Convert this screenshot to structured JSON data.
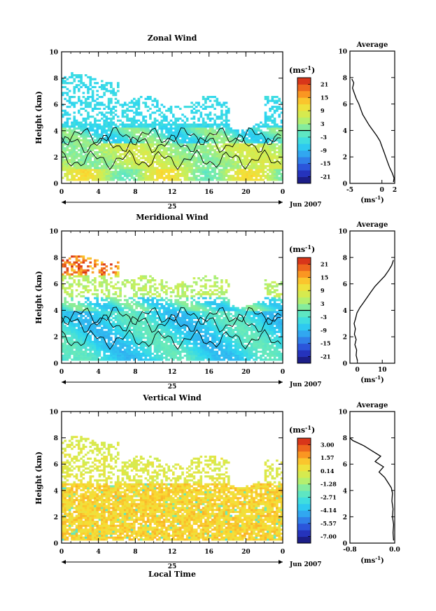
{
  "figure": {
    "xlabel_bottom": "Local Time",
    "date_label": "Jun 2007",
    "day_label": "25",
    "average_title": "Average"
  },
  "chart_data": [
    {
      "type": "heatmap",
      "title": "Zonal Wind",
      "ylabel": "Height (km)",
      "xlabel": "",
      "xticks": [
        "0",
        "4",
        "8",
        "12",
        "16",
        "20",
        "0"
      ],
      "xlim": [
        0,
        24
      ],
      "yticks": [
        "0",
        "2",
        "4",
        "6",
        "8",
        "10"
      ],
      "ylim": [
        0,
        10
      ],
      "colorbar": {
        "unit": "(ms-1)",
        "ticks": [
          "21",
          "15",
          "9",
          "3",
          "-3",
          "-9",
          "-15",
          "-21"
        ],
        "range": [
          -24,
          24
        ]
      },
      "zero_contour_level": 0,
      "profile": {
        "title": "Average",
        "xlabel": "(ms-1)",
        "xticks": [
          "-5",
          "0",
          "2"
        ],
        "xlim": [
          -5,
          2
        ],
        "ylim": [
          0,
          10
        ],
        "points": [
          [
            1.8,
            0.1
          ],
          [
            1.9,
            0.4
          ],
          [
            1.6,
            0.8
          ],
          [
            1.2,
            1.2
          ],
          [
            0.9,
            1.6
          ],
          [
            0.6,
            2.0
          ],
          [
            0.3,
            2.4
          ],
          [
            0.0,
            2.8
          ],
          [
            -0.3,
            3.2
          ],
          [
            -0.8,
            3.6
          ],
          [
            -1.4,
            4.0
          ],
          [
            -2.0,
            4.4
          ],
          [
            -2.5,
            4.8
          ],
          [
            -3.0,
            5.2
          ],
          [
            -3.3,
            5.6
          ],
          [
            -3.6,
            6.0
          ],
          [
            -4.0,
            6.4
          ],
          [
            -4.3,
            6.8
          ],
          [
            -4.6,
            7.2
          ],
          [
            -4.4,
            7.6
          ],
          [
            -4.7,
            7.9
          ]
        ]
      },
      "data_top": {
        "base": 8.0,
        "amp": 0.4
      }
    },
    {
      "type": "heatmap",
      "title": "Meridional Wind",
      "ylabel": "Height (km)",
      "xlabel": "",
      "xticks": [
        "0",
        "4",
        "8",
        "12",
        "16",
        "20",
        "0"
      ],
      "xlim": [
        0,
        24
      ],
      "yticks": [
        "0",
        "2",
        "4",
        "6",
        "8",
        "10"
      ],
      "ylim": [
        0,
        10
      ],
      "colorbar": {
        "unit": "(ms-1)",
        "ticks": [
          "21",
          "15",
          "9",
          "3",
          "-3",
          "-9",
          "-15",
          "-21"
        ],
        "range": [
          -24,
          24
        ]
      },
      "zero_contour_level": 0,
      "profile": {
        "title": "Average",
        "xlabel": "(ms-1)",
        "xticks": [
          "0",
          "10"
        ],
        "xlim": [
          -3,
          15
        ],
        "ylim": [
          0,
          10
        ],
        "points": [
          [
            0.0,
            0.2
          ],
          [
            -0.5,
            0.6
          ],
          [
            -0.3,
            1.0
          ],
          [
            -1.0,
            1.4
          ],
          [
            -0.5,
            1.8
          ],
          [
            -1.2,
            2.2
          ],
          [
            -0.8,
            2.6
          ],
          [
            -1.3,
            3.0
          ],
          [
            -0.7,
            3.4
          ],
          [
            -0.2,
            3.8
          ],
          [
            1.0,
            4.2
          ],
          [
            2.5,
            4.6
          ],
          [
            4.0,
            5.0
          ],
          [
            5.5,
            5.4
          ],
          [
            7.0,
            5.8
          ],
          [
            9.0,
            6.2
          ],
          [
            11.0,
            6.6
          ],
          [
            12.5,
            7.0
          ],
          [
            13.8,
            7.4
          ],
          [
            14.5,
            7.8
          ]
        ]
      },
      "data_top": {
        "base": 7.8,
        "amp": 0.3
      }
    },
    {
      "type": "heatmap",
      "title": "Vertical Wind",
      "ylabel": "Height (km)",
      "xlabel": "Local Time",
      "xticks": [
        "0",
        "4",
        "8",
        "12",
        "16",
        "20",
        "0"
      ],
      "xlim": [
        0,
        24
      ],
      "yticks": [
        "0",
        "2",
        "4",
        "6",
        "8",
        "10"
      ],
      "ylim": [
        0,
        10
      ],
      "colorbar": {
        "unit": "(ms-1)",
        "ticks": [
          "3.00",
          "1.57",
          "0.14",
          "-1.28",
          "-2.71",
          "-4.14",
          "-5.57",
          "-7.00"
        ],
        "range": [
          -7.7,
          3.7
        ]
      },
      "profile": {
        "title": "Average",
        "xlabel": "(ms-1)",
        "xticks": [
          "-0.8",
          "0.0"
        ],
        "xlim": [
          -0.8,
          0.0
        ],
        "ylim": [
          0,
          10
        ],
        "points": [
          [
            -0.02,
            0.2
          ],
          [
            -0.03,
            0.8
          ],
          [
            -0.02,
            1.4
          ],
          [
            -0.04,
            2.0
          ],
          [
            -0.03,
            2.6
          ],
          [
            -0.05,
            3.2
          ],
          [
            -0.04,
            3.8
          ],
          [
            -0.06,
            4.2
          ],
          [
            -0.12,
            4.6
          ],
          [
            -0.18,
            5.0
          ],
          [
            -0.28,
            5.4
          ],
          [
            -0.2,
            5.8
          ],
          [
            -0.35,
            6.2
          ],
          [
            -0.25,
            6.6
          ],
          [
            -0.4,
            7.0
          ],
          [
            -0.55,
            7.4
          ],
          [
            -0.75,
            7.8
          ],
          [
            -0.8,
            8.0
          ]
        ]
      },
      "data_top": {
        "base": 7.8,
        "amp": 0.3
      }
    }
  ]
}
